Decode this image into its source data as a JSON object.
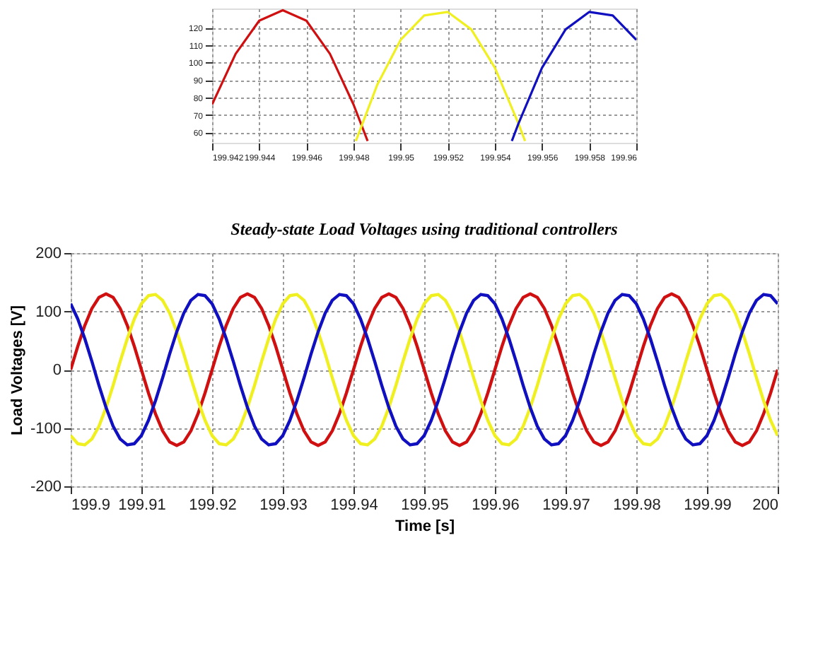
{
  "chart_data": [
    {
      "type": "line",
      "xlim": [
        199.942,
        199.96
      ],
      "xticks": [
        199.942,
        199.944,
        199.946,
        199.948,
        199.95,
        199.952,
        199.954,
        199.956,
        199.958,
        199.96
      ],
      "ylim": [
        54,
        131
      ],
      "yticks": [
        60,
        70,
        80,
        90,
        100,
        110,
        120
      ],
      "grid": true,
      "legend": false,
      "marker": "none",
      "line_style": "solid",
      "series": [
        {
          "color": "#d01010",
          "x": [
            199.942,
            199.943,
            199.944,
            199.945,
            199.946,
            199.947,
            199.948,
            199.9486
          ],
          "values": [
            76,
            105,
            124,
            130,
            124,
            105,
            76,
            55
          ]
        },
        {
          "color": "#f0f020",
          "x": [
            199.9481,
            199.949,
            199.95,
            199.951,
            199.952,
            199.953,
            199.954,
            199.955,
            199.95528
          ],
          "values": [
            55,
            87,
            113,
            127,
            129,
            119,
            97,
            65,
            55
          ]
        },
        {
          "color": "#1010c0",
          "x": [
            199.95472,
            199.955,
            199.956,
            199.957,
            199.958,
            199.959,
            199.96
          ],
          "values": [
            55,
            65,
            97,
            119,
            129,
            127,
            113
          ]
        }
      ]
    },
    {
      "type": "line",
      "title": "Steady-state Load Voltages using traditional controllers",
      "xlabel": "Time [s]",
      "ylabel": "Load Voltages [V]",
      "xlim": [
        199.9,
        200
      ],
      "xticks": [
        199.9,
        199.91,
        199.92,
        199.93,
        199.94,
        199.95,
        199.96,
        199.97,
        199.98,
        199.99,
        200
      ],
      "ylim": [
        -200,
        200
      ],
      "yticks": [
        -200,
        -100,
        0,
        100,
        200
      ],
      "grid": true,
      "legend": false,
      "marker": "none",
      "line_style": "solid",
      "x": [
        199.9,
        199.901,
        199.902,
        199.903,
        199.904,
        199.905,
        199.906,
        199.907,
        199.908,
        199.909,
        199.91,
        199.911,
        199.912,
        199.913,
        199.914,
        199.915,
        199.916,
        199.917,
        199.918,
        199.919,
        199.92,
        199.921,
        199.922,
        199.923,
        199.924,
        199.925,
        199.926,
        199.927,
        199.928,
        199.929,
        199.93,
        199.931,
        199.932,
        199.933,
        199.934,
        199.935,
        199.936,
        199.937,
        199.938,
        199.939,
        199.94,
        199.941,
        199.942,
        199.943,
        199.944,
        199.945,
        199.946,
        199.947,
        199.948,
        199.949,
        199.95,
        199.951,
        199.952,
        199.953,
        199.954,
        199.955,
        199.956,
        199.957,
        199.958,
        199.959,
        199.96,
        199.961,
        199.962,
        199.963,
        199.964,
        199.965,
        199.966,
        199.967,
        199.968,
        199.969,
        199.97,
        199.971,
        199.972,
        199.973,
        199.974,
        199.975,
        199.976,
        199.977,
        199.978,
        199.979,
        199.98,
        199.981,
        199.982,
        199.983,
        199.984,
        199.985,
        199.986,
        199.987,
        199.988,
        199.989,
        199.99,
        199.991,
        199.992,
        199.993,
        199.994,
        199.995,
        199.996,
        199.997,
        199.998,
        199.999,
        200
      ],
      "series": [
        {
          "color": "#d01010",
          "values": [
            0,
            40,
            76,
            105,
            124,
            130,
            124,
            105,
            76,
            40,
            0,
            -40,
            -76,
            -105,
            -124,
            -130,
            -124,
            -105,
            -76,
            -40,
            0,
            40,
            76,
            105,
            124,
            130,
            124,
            105,
            76,
            40,
            0,
            -40,
            -76,
            -105,
            -124,
            -130,
            -124,
            -105,
            -76,
            -40,
            0,
            40,
            76,
            105,
            124,
            130,
            124,
            105,
            76,
            40,
            0,
            -40,
            -76,
            -105,
            -124,
            -130,
            -124,
            -105,
            -76,
            -40,
            0,
            40,
            76,
            105,
            124,
            130,
            124,
            105,
            76,
            40,
            0,
            -40,
            -76,
            -105,
            -124,
            -130,
            -124,
            -105,
            -76,
            -40,
            0,
            40,
            76,
            105,
            124,
            130,
            124,
            105,
            76,
            40,
            0,
            -40,
            -76,
            -105,
            -124,
            -130,
            -124,
            -105,
            -76,
            -40,
            0
          ]
        },
        {
          "color": "#f0f020",
          "values": [
            -113,
            -127,
            -129,
            -119,
            -97,
            -65,
            -27,
            14,
            53,
            87,
            113,
            127,
            129,
            119,
            97,
            65,
            27,
            -14,
            -53,
            -87,
            -113,
            -127,
            -129,
            -119,
            -97,
            -65,
            -27,
            14,
            53,
            87,
            113,
            127,
            129,
            119,
            97,
            65,
            27,
            -14,
            -53,
            -87,
            -113,
            -127,
            -129,
            -119,
            -97,
            -65,
            -27,
            14,
            53,
            87,
            113,
            127,
            129,
            119,
            97,
            65,
            27,
            -14,
            -53,
            -87,
            -113,
            -127,
            -129,
            -119,
            -97,
            -65,
            -27,
            14,
            53,
            87,
            113,
            127,
            129,
            119,
            97,
            65,
            27,
            -14,
            -53,
            -87,
            -113,
            -127,
            -129,
            -119,
            -97,
            -65,
            -27,
            14,
            53,
            87,
            113,
            127,
            129,
            119,
            97,
            65,
            27,
            -14,
            -53,
            -87,
            -113
          ]
        },
        {
          "color": "#1010c0",
          "values": [
            113,
            87,
            53,
            14,
            -27,
            -65,
            -97,
            -119,
            -129,
            -127,
            -113,
            -87,
            -53,
            -14,
            27,
            65,
            97,
            119,
            129,
            127,
            113,
            87,
            53,
            14,
            -27,
            -65,
            -97,
            -119,
            -129,
            -127,
            -113,
            -87,
            -53,
            -14,
            27,
            65,
            97,
            119,
            129,
            127,
            113,
            87,
            53,
            14,
            -27,
            -65,
            -97,
            -119,
            -129,
            -127,
            -113,
            -87,
            -53,
            -14,
            27,
            65,
            97,
            119,
            129,
            127,
            113,
            87,
            53,
            14,
            -27,
            -65,
            -97,
            -119,
            -129,
            -127,
            -113,
            -87,
            -53,
            -14,
            27,
            65,
            97,
            119,
            129,
            127,
            113,
            87,
            53,
            14,
            -27,
            -65,
            -97,
            -119,
            -129,
            -127,
            -113,
            -87,
            -53,
            -14,
            27,
            65,
            97,
            119,
            129,
            127,
            113
          ]
        }
      ]
    }
  ]
}
